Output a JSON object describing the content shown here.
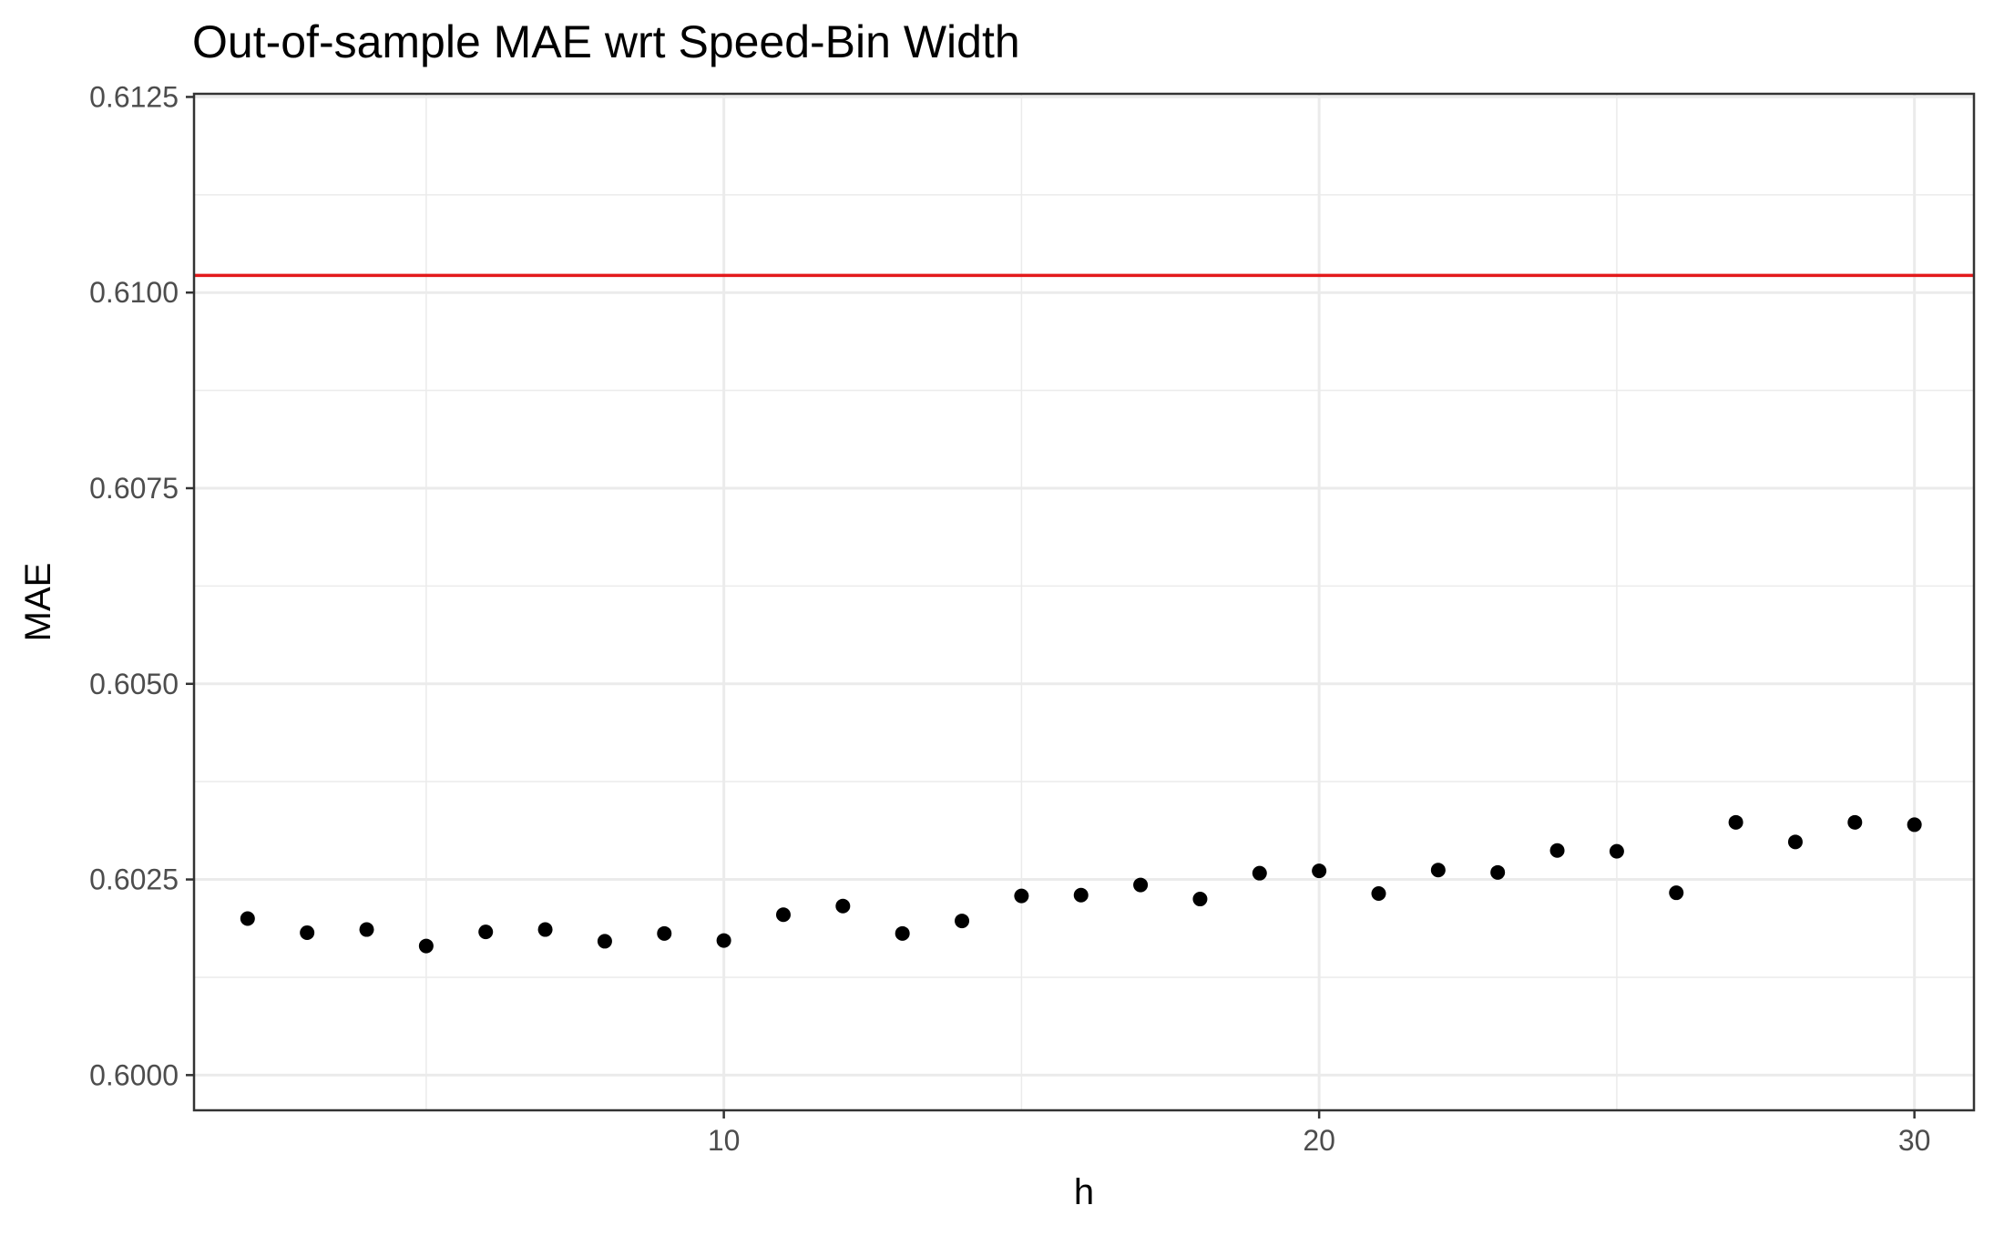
{
  "chart_data": {
    "type": "scatter",
    "title": "Out-of-sample MAE wrt Speed-Bin Width",
    "xlabel": "h",
    "ylabel": "MAE",
    "xlim": [
      1.1,
      31.0
    ],
    "ylim": [
      0.59955,
      0.61254
    ],
    "x_ticks": [
      10,
      20,
      30
    ],
    "x_tick_labels": [
      "10",
      "20",
      "30"
    ],
    "y_ticks": [
      0.6,
      0.6025,
      0.605,
      0.6075,
      0.61,
      0.6125
    ],
    "y_tick_labels": [
      "0.6000",
      "0.6025",
      "0.6050",
      "0.6075",
      "0.6100",
      "0.6125"
    ],
    "x_minor_ticks": [
      5,
      15,
      25
    ],
    "y_minor_ticks": [
      0.60125,
      0.60375,
      0.60625,
      0.60875,
      0.61125
    ],
    "grid": true,
    "point_color": "#000000",
    "reference_line": {
      "y": 0.61022,
      "color": "#e31a1c"
    },
    "points": [
      {
        "x": 2,
        "y": 0.602
      },
      {
        "x": 3,
        "y": 0.60182
      },
      {
        "x": 4,
        "y": 0.60186
      },
      {
        "x": 5,
        "y": 0.60165
      },
      {
        "x": 6,
        "y": 0.60183
      },
      {
        "x": 7,
        "y": 0.60186
      },
      {
        "x": 8,
        "y": 0.60171
      },
      {
        "x": 9,
        "y": 0.60181
      },
      {
        "x": 10,
        "y": 0.60172
      },
      {
        "x": 11,
        "y": 0.60205
      },
      {
        "x": 12,
        "y": 0.60216
      },
      {
        "x": 13,
        "y": 0.60181
      },
      {
        "x": 14,
        "y": 0.60197
      },
      {
        "x": 15,
        "y": 0.60229
      },
      {
        "x": 16,
        "y": 0.6023
      },
      {
        "x": 17,
        "y": 0.60243
      },
      {
        "x": 18,
        "y": 0.60225
      },
      {
        "x": 19,
        "y": 0.60258
      },
      {
        "x": 20,
        "y": 0.60261
      },
      {
        "x": 21,
        "y": 0.60232
      },
      {
        "x": 22,
        "y": 0.60262
      },
      {
        "x": 23,
        "y": 0.60259
      },
      {
        "x": 24,
        "y": 0.60287
      },
      {
        "x": 25,
        "y": 0.60286
      },
      {
        "x": 26,
        "y": 0.60233
      },
      {
        "x": 27,
        "y": 0.60323
      },
      {
        "x": 28,
        "y": 0.60298
      },
      {
        "x": 29,
        "y": 0.60323
      },
      {
        "x": 30,
        "y": 0.6032
      }
    ]
  }
}
